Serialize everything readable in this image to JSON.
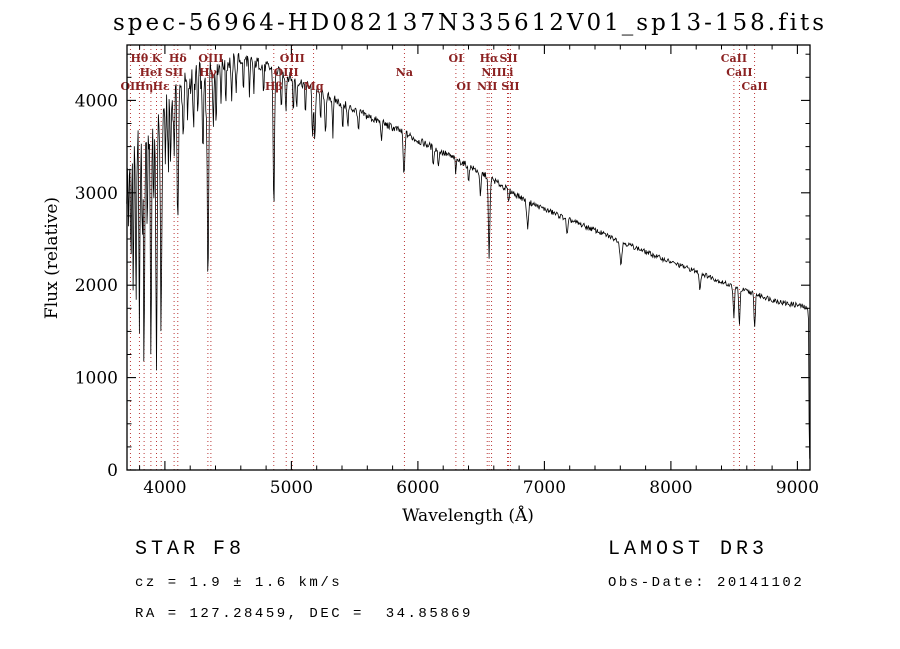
{
  "annotations": {
    "class_label": "STAR",
    "class_value": "F8",
    "survey": "LAMOST DR3",
    "cz_line": "cz = 1.9 ± 1.6 km/s",
    "obs_date": "Obs-Date: 20141102",
    "radec_line": "RA = 127.28459, DEC =  34.85869"
  },
  "chart_data": {
    "type": "line",
    "title": "spec-56964-HD082137N335612V01_sp13-158.fits",
    "xlabel": "Wavelength (Å)",
    "ylabel": "Flux (relative)",
    "xlim": [
      3700,
      9100
    ],
    "ylim": [
      0,
      4600
    ],
    "xticks": [
      4000,
      5000,
      6000,
      7000,
      8000,
      9000
    ],
    "yticks": [
      0,
      1000,
      2000,
      3000,
      4000
    ],
    "x_minor_step": 200,
    "y_minor_step": 250,
    "grid": false,
    "line_color": "#000000",
    "marker_color": "#b22222",
    "sample_step": 5,
    "continuum": [
      [
        3695,
        3000
      ],
      [
        3720,
        3450
      ],
      [
        3750,
        3560
      ],
      [
        3800,
        3650
      ],
      [
        3850,
        3660
      ],
      [
        3900,
        3680
      ],
      [
        3950,
        3730
      ],
      [
        4000,
        3900
      ],
      [
        4050,
        4010
      ],
      [
        4100,
        4070
      ],
      [
        4150,
        4150
      ],
      [
        4200,
        4210
      ],
      [
        4250,
        4260
      ],
      [
        4300,
        4310
      ],
      [
        4350,
        4340
      ],
      [
        4400,
        4360
      ],
      [
        4450,
        4390
      ],
      [
        4500,
        4410
      ],
      [
        4550,
        4430
      ],
      [
        4600,
        4445
      ],
      [
        4650,
        4440
      ],
      [
        4700,
        4420
      ],
      [
        4750,
        4395
      ],
      [
        4800,
        4365
      ],
      [
        4850,
        4335
      ],
      [
        4900,
        4305
      ],
      [
        4950,
        4275
      ],
      [
        5000,
        4245
      ],
      [
        5100,
        4180
      ],
      [
        5200,
        4105
      ],
      [
        5300,
        4035
      ],
      [
        5400,
        3965
      ],
      [
        5500,
        3895
      ],
      [
        5600,
        3830
      ],
      [
        5700,
        3765
      ],
      [
        5800,
        3705
      ],
      [
        5900,
        3645
      ],
      [
        6000,
        3565
      ],
      [
        6100,
        3505
      ],
      [
        6200,
        3435
      ],
      [
        6300,
        3365
      ],
      [
        6400,
        3290
      ],
      [
        6500,
        3215
      ],
      [
        6600,
        3135
      ],
      [
        6700,
        3045
      ],
      [
        6800,
        2960
      ],
      [
        6900,
        2885
      ],
      [
        7000,
        2825
      ],
      [
        7100,
        2765
      ],
      [
        7200,
        2705
      ],
      [
        7300,
        2650
      ],
      [
        7400,
        2595
      ],
      [
        7500,
        2535
      ],
      [
        7600,
        2475
      ],
      [
        7700,
        2420
      ],
      [
        7800,
        2360
      ],
      [
        7900,
        2305
      ],
      [
        8000,
        2250
      ],
      [
        8100,
        2200
      ],
      [
        8200,
        2150
      ],
      [
        8300,
        2095
      ],
      [
        8400,
        2035
      ],
      [
        8500,
        1985
      ],
      [
        8600,
        1935
      ],
      [
        8700,
        1890
      ],
      [
        8800,
        1845
      ],
      [
        8900,
        1805
      ],
      [
        9000,
        1785
      ],
      [
        9050,
        1765
      ],
      [
        9080,
        1740
      ],
      [
        9088,
        1650
      ],
      [
        9094,
        300
      ],
      [
        9100,
        40
      ]
    ],
    "absorption_lines": [
      [
        3712,
        700,
        3
      ],
      [
        3727,
        900,
        3
      ],
      [
        3734,
        1100,
        3
      ],
      [
        3750,
        1600,
        3.5
      ],
      [
        3771,
        1900,
        4
      ],
      [
        3798,
        2350,
        4.5
      ],
      [
        3820,
        1300,
        3.5
      ],
      [
        3835,
        2550,
        4.5
      ],
      [
        3860,
        1100,
        3.5
      ],
      [
        3889,
        2350,
        5
      ],
      [
        3910,
        800,
        3.5
      ],
      [
        3933,
        2450,
        5.5
      ],
      [
        3970,
        2250,
        5.5
      ],
      [
        4005,
        600,
        3.5
      ],
      [
        4026,
        650,
        4
      ],
      [
        4045,
        700,
        4
      ],
      [
        4072,
        600,
        4
      ],
      [
        4102,
        1350,
        5.5
      ],
      [
        4144,
        550,
        4
      ],
      [
        4180,
        400,
        4
      ],
      [
        4226,
        650,
        4
      ],
      [
        4260,
        450,
        4
      ],
      [
        4300,
        750,
        7
      ],
      [
        4325,
        500,
        4
      ],
      [
        4340,
        2280,
        5.5
      ],
      [
        4383,
        650,
        4
      ],
      [
        4405,
        550,
        4
      ],
      [
        4444,
        350,
        4
      ],
      [
        4481,
        400,
        4
      ],
      [
        4528,
        500,
        4
      ],
      [
        4564,
        350,
        4
      ],
      [
        4620,
        350,
        4
      ],
      [
        4668,
        450,
        4
      ],
      [
        4703,
        350,
        4
      ],
      [
        4780,
        300,
        4
      ],
      [
        4861,
        1480,
        5.5
      ],
      [
        4920,
        450,
        4
      ],
      [
        4957,
        400,
        4
      ],
      [
        5015,
        350,
        4
      ],
      [
        5041,
        300,
        4
      ],
      [
        5110,
        300,
        4
      ],
      [
        5167,
        500,
        5
      ],
      [
        5185,
        550,
        5
      ],
      [
        5230,
        300,
        4
      ],
      [
        5270,
        450,
        5
      ],
      [
        5328,
        400,
        4
      ],
      [
        5405,
        300,
        4
      ],
      [
        5446,
        250,
        4
      ],
      [
        5530,
        250,
        4
      ],
      [
        5711,
        200,
        4
      ],
      [
        5890,
        480,
        6
      ],
      [
        6122,
        220,
        4
      ],
      [
        6162,
        200,
        4
      ],
      [
        6300,
        160,
        4
      ],
      [
        6400,
        180,
        4
      ],
      [
        6494,
        280,
        5
      ],
      [
        6563,
        880,
        6
      ],
      [
        6717,
        150,
        4
      ],
      [
        6867,
        280,
        7
      ],
      [
        7180,
        180,
        6
      ],
      [
        7605,
        230,
        8
      ],
      [
        8230,
        170,
        6
      ],
      [
        8498,
        360,
        5
      ],
      [
        8542,
        420,
        5
      ],
      [
        8662,
        380,
        5
      ]
    ],
    "noise_profile": [
      [
        3700,
        270
      ],
      [
        3800,
        250
      ],
      [
        3900,
        235
      ],
      [
        4000,
        205
      ],
      [
        4100,
        175
      ],
      [
        4200,
        155
      ],
      [
        4300,
        135
      ],
      [
        4400,
        110
      ],
      [
        4500,
        90
      ],
      [
        4700,
        72
      ],
      [
        5000,
        58
      ],
      [
        5300,
        50
      ],
      [
        5600,
        45
      ],
      [
        6000,
        40
      ],
      [
        6500,
        34
      ],
      [
        7000,
        30
      ],
      [
        7500,
        27
      ],
      [
        8000,
        26
      ],
      [
        8500,
        27
      ],
      [
        9000,
        30
      ]
    ],
    "line_markers": [
      {
        "label": "Hθ",
        "wavelength": 3798,
        "row": 1
      },
      {
        "label": "K",
        "wavelength": 3933,
        "row": 1
      },
      {
        "label": "Hδ",
        "wavelength": 4102,
        "row": 1
      },
      {
        "label": "OIII",
        "wavelength": 4363,
        "row": 1
      },
      {
        "label": "OIII",
        "wavelength": 5007,
        "row": 1
      },
      {
        "label": "OI",
        "wavelength": 6300,
        "row": 1
      },
      {
        "label": "Hα",
        "wavelength": 6563,
        "row": 1
      },
      {
        "label": "SII",
        "wavelength": 6717,
        "row": 1
      },
      {
        "label": "CaII",
        "wavelength": 8498,
        "row": 1
      },
      {
        "label": "HeI",
        "wavelength": 3889,
        "row": 2
      },
      {
        "label": "SII",
        "wavelength": 4072,
        "row": 2
      },
      {
        "label": "Hγ",
        "wavelength": 4340,
        "row": 2
      },
      {
        "label": "OIII",
        "wavelength": 4959,
        "row": 2
      },
      {
        "label": "Na",
        "wavelength": 5893,
        "row": 2
      },
      {
        "label": "NII",
        "wavelength": 6583,
        "row": 2
      },
      {
        "label": "Li",
        "wavelength": 6708,
        "row": 2
      },
      {
        "label": "CaII",
        "wavelength": 8542,
        "row": 2
      },
      {
        "label": "OII",
        "wavelength": 3727,
        "row": 3
      },
      {
        "label": "Hη",
        "wavelength": 3835,
        "row": 3
      },
      {
        "label": "Hε",
        "wavelength": 3970,
        "row": 3
      },
      {
        "label": "Hβ",
        "wavelength": 4861,
        "row": 3
      },
      {
        "label": "Mg",
        "wavelength": 5175,
        "row": 3
      },
      {
        "label": "OI",
        "wavelength": 6363,
        "row": 3
      },
      {
        "label": "NII",
        "wavelength": 6548,
        "row": 3
      },
      {
        "label": "SII",
        "wavelength": 6731,
        "row": 3
      },
      {
        "label": "CaII",
        "wavelength": 8662,
        "row": 3
      }
    ]
  }
}
